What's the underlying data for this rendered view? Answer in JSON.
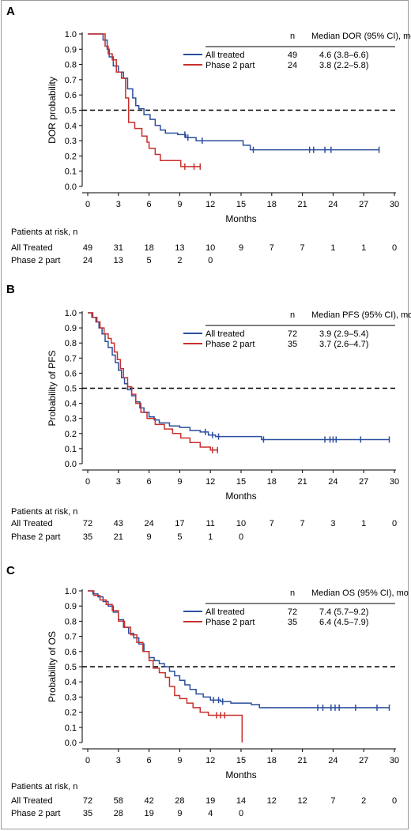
{
  "chart_data": [
    {
      "type": "line",
      "panel_label": "A",
      "ylabel": "DOR probability",
      "xlabel": "Months",
      "xticks": [
        0,
        3,
        6,
        9,
        12,
        15,
        18,
        21,
        24,
        27,
        30
      ],
      "yticks": [
        "0.0",
        "0.1",
        "0.2",
        "0.3",
        "0.4",
        "0.5",
        "0.6",
        "0.7",
        "0.8",
        "0.9",
        "1.0"
      ],
      "xlim": [
        0,
        30
      ],
      "ylim": [
        0,
        1
      ],
      "reference_line_y": 0.5,
      "legend_header": {
        "n": "n",
        "median": "Median DOR (95% CI), mo"
      },
      "series": [
        {
          "name": "All treated",
          "n": "49",
          "median": "4.6 (3.8–6.6)",
          "color": "#2b4f9e",
          "steps": [
            [
              0,
              1.0
            ],
            [
              1.5,
              0.96
            ],
            [
              1.9,
              0.9
            ],
            [
              2.1,
              0.85
            ],
            [
              2.5,
              0.79
            ],
            [
              3.0,
              0.75
            ],
            [
              3.5,
              0.71
            ],
            [
              3.9,
              0.64
            ],
            [
              4.4,
              0.58
            ],
            [
              4.7,
              0.53
            ],
            [
              5.0,
              0.51
            ],
            [
              5.5,
              0.47
            ],
            [
              6.1,
              0.44
            ],
            [
              6.6,
              0.4
            ],
            [
              7.1,
              0.37
            ],
            [
              7.6,
              0.35
            ],
            [
              8.8,
              0.34
            ],
            [
              9.6,
              0.32
            ],
            [
              10.6,
              0.3
            ],
            [
              15.2,
              0.27
            ],
            [
              15.9,
              0.24
            ],
            [
              28.5,
              0.24
            ]
          ],
          "censor": [
            9.5,
            9.8,
            11.2,
            16.2,
            21.7,
            22.1,
            23.2,
            23.8,
            28.5
          ]
        },
        {
          "name": "Phase 2 part",
          "n": "24",
          "median": "3.8 (2.2–5.8)",
          "color": "#c8302c",
          "steps": [
            [
              0,
              1.0
            ],
            [
              1.7,
              0.92
            ],
            [
              2.0,
              0.87
            ],
            [
              2.4,
              0.83
            ],
            [
              2.8,
              0.75
            ],
            [
              3.3,
              0.71
            ],
            [
              3.7,
              0.58
            ],
            [
              4.0,
              0.42
            ],
            [
              4.6,
              0.38
            ],
            [
              5.3,
              0.33
            ],
            [
              5.8,
              0.29
            ],
            [
              6.0,
              0.25
            ],
            [
              6.6,
              0.21
            ],
            [
              7.1,
              0.17
            ],
            [
              9.1,
              0.13
            ],
            [
              9.5,
              0.13
            ],
            [
              11.0,
              0.13
            ]
          ],
          "censor": [
            9.5,
            10.4,
            11.0
          ]
        }
      ],
      "risk_table": {
        "title": "Patients at risk, n",
        "rows": [
          {
            "label": "All Treated",
            "values": [
              "49",
              "31",
              "18",
              "13",
              "10",
              "9",
              "7",
              "7",
              "1",
              "1",
              "0"
            ]
          },
          {
            "label": "Phase 2 part",
            "values": [
              "24",
              "13",
              "5",
              "2",
              "0"
            ]
          }
        ]
      }
    },
    {
      "type": "line",
      "panel_label": "B",
      "ylabel": "Probability of PFS",
      "xlabel": "Months",
      "xticks": [
        0,
        3,
        6,
        9,
        12,
        15,
        18,
        21,
        24,
        27,
        30
      ],
      "yticks": [
        "0.0",
        "0.1",
        "0.2",
        "0.3",
        "0.4",
        "0.5",
        "0.6",
        "0.7",
        "0.8",
        "0.9",
        "1.0"
      ],
      "xlim": [
        0,
        30
      ],
      "ylim": [
        0,
        1
      ],
      "reference_line_y": 0.5,
      "legend_header": {
        "n": "n",
        "median": "Median PFS (95% CI), mo"
      },
      "series": [
        {
          "name": "All treated",
          "n": "72",
          "median": "3.9 (2.9–5.4)",
          "color": "#2b4f9e",
          "steps": [
            [
              0,
              1.0
            ],
            [
              0.4,
              0.97
            ],
            [
              0.8,
              0.94
            ],
            [
              1.1,
              0.9
            ],
            [
              1.4,
              0.86
            ],
            [
              1.7,
              0.81
            ],
            [
              2.0,
              0.77
            ],
            [
              2.4,
              0.72
            ],
            [
              2.7,
              0.67
            ],
            [
              3.0,
              0.62
            ],
            [
              3.3,
              0.57
            ],
            [
              3.6,
              0.53
            ],
            [
              3.9,
              0.49
            ],
            [
              4.3,
              0.45
            ],
            [
              4.7,
              0.41
            ],
            [
              5.1,
              0.37
            ],
            [
              5.5,
              0.34
            ],
            [
              6.0,
              0.31
            ],
            [
              6.5,
              0.29
            ],
            [
              7.0,
              0.27
            ],
            [
              8.0,
              0.25
            ],
            [
              9.0,
              0.24
            ],
            [
              10.0,
              0.22
            ],
            [
              11.0,
              0.21
            ],
            [
              11.8,
              0.19
            ],
            [
              12.5,
              0.18
            ],
            [
              17.0,
              0.16
            ],
            [
              29.5,
              0.16
            ]
          ],
          "censor": [
            11.5,
            12.2,
            12.8,
            17.2,
            23.2,
            23.7,
            24.0,
            24.3,
            26.7,
            29.5
          ]
        },
        {
          "name": "Phase 2 part",
          "n": "35",
          "median": "3.7 (2.6–4.7)",
          "color": "#c8302c",
          "steps": [
            [
              0,
              1.0
            ],
            [
              0.5,
              0.97
            ],
            [
              0.9,
              0.94
            ],
            [
              1.2,
              0.9
            ],
            [
              1.6,
              0.86
            ],
            [
              2.0,
              0.83
            ],
            [
              2.3,
              0.8
            ],
            [
              2.6,
              0.74
            ],
            [
              2.9,
              0.69
            ],
            [
              3.2,
              0.63
            ],
            [
              3.5,
              0.57
            ],
            [
              3.9,
              0.51
            ],
            [
              4.3,
              0.46
            ],
            [
              4.7,
              0.4
            ],
            [
              5.2,
              0.34
            ],
            [
              5.8,
              0.3
            ],
            [
              6.6,
              0.26
            ],
            [
              7.5,
              0.23
            ],
            [
              8.3,
              0.2
            ],
            [
              9.1,
              0.17
            ],
            [
              10.0,
              0.14
            ],
            [
              11.0,
              0.11
            ],
            [
              12.0,
              0.09
            ],
            [
              12.7,
              0.09
            ]
          ],
          "censor": [
            12.2,
            12.7
          ]
        }
      ],
      "risk_table": {
        "title": "Patients at risk, n",
        "rows": [
          {
            "label": "All Treated",
            "values": [
              "72",
              "43",
              "24",
              "17",
              "11",
              "10",
              "7",
              "7",
              "3",
              "1",
              "0"
            ]
          },
          {
            "label": "Phase 2 part",
            "values": [
              "35",
              "21",
              "9",
              "5",
              "1",
              "0"
            ]
          }
        ]
      }
    },
    {
      "type": "line",
      "panel_label": "C",
      "ylabel": "Probability of OS",
      "xlabel": "Months",
      "xticks": [
        0,
        3,
        6,
        9,
        12,
        15,
        18,
        21,
        24,
        27,
        30
      ],
      "yticks": [
        "0.0",
        "0.1",
        "0.2",
        "0.3",
        "0.4",
        "0.5",
        "0.6",
        "0.7",
        "0.8",
        "0.9",
        "1.0"
      ],
      "xlim": [
        0,
        30
      ],
      "ylim": [
        0,
        1
      ],
      "reference_line_y": 0.5,
      "legend_header": {
        "n": "n",
        "median": "Median OS (95% CI), mo"
      },
      "series": [
        {
          "name": "All treated",
          "n": "72",
          "median": "7.4 (5.7–9.2)",
          "color": "#2b4f9e",
          "steps": [
            [
              0,
              1.0
            ],
            [
              0.5,
              0.98
            ],
            [
              1.0,
              0.96
            ],
            [
              1.5,
              0.93
            ],
            [
              2.0,
              0.9
            ],
            [
              2.5,
              0.86
            ],
            [
              3.0,
              0.81
            ],
            [
              3.5,
              0.76
            ],
            [
              4.0,
              0.72
            ],
            [
              4.5,
              0.69
            ],
            [
              5.0,
              0.65
            ],
            [
              5.5,
              0.6
            ],
            [
              6.0,
              0.56
            ],
            [
              6.5,
              0.54
            ],
            [
              7.0,
              0.52
            ],
            [
              7.5,
              0.5
            ],
            [
              8.0,
              0.47
            ],
            [
              8.5,
              0.44
            ],
            [
              9.0,
              0.41
            ],
            [
              9.5,
              0.38
            ],
            [
              10.0,
              0.35
            ],
            [
              10.6,
              0.32
            ],
            [
              11.3,
              0.3
            ],
            [
              12.0,
              0.28
            ],
            [
              13.0,
              0.27
            ],
            [
              14.0,
              0.26
            ],
            [
              16.0,
              0.25
            ],
            [
              16.8,
              0.23
            ],
            [
              29.5,
              0.23
            ]
          ],
          "censor": [
            12.3,
            12.8,
            13.2,
            22.5,
            23.0,
            23.8,
            24.2,
            24.6,
            26.2,
            28.3,
            29.5
          ]
        },
        {
          "name": "Phase 2 part",
          "n": "35",
          "median": "6.4 (4.5–7.9)",
          "color": "#c8302c",
          "steps": [
            [
              0,
              1.0
            ],
            [
              0.6,
              0.97
            ],
            [
              1.2,
              0.94
            ],
            [
              1.8,
              0.91
            ],
            [
              2.4,
              0.87
            ],
            [
              3.0,
              0.8
            ],
            [
              3.6,
              0.76
            ],
            [
              4.2,
              0.71
            ],
            [
              4.8,
              0.66
            ],
            [
              5.4,
              0.6
            ],
            [
              6.0,
              0.54
            ],
            [
              6.4,
              0.49
            ],
            [
              7.0,
              0.46
            ],
            [
              7.6,
              0.43
            ],
            [
              8.0,
              0.37
            ],
            [
              8.5,
              0.31
            ],
            [
              9.0,
              0.29
            ],
            [
              9.7,
              0.26
            ],
            [
              10.3,
              0.23
            ],
            [
              11.0,
              0.2
            ],
            [
              11.8,
              0.18
            ],
            [
              15.1,
              0.18
            ],
            [
              15.1,
              0.0
            ]
          ],
          "censor": [
            12.6,
            13.0,
            13.4
          ]
        }
      ],
      "risk_table": {
        "title": "Patients at risk, n",
        "rows": [
          {
            "label": "All Treated",
            "values": [
              "72",
              "58",
              "42",
              "28",
              "19",
              "14",
              "12",
              "12",
              "7",
              "2",
              "0"
            ]
          },
          {
            "label": "Phase 2 part",
            "values": [
              "35",
              "28",
              "19",
              "9",
              "4",
              "0"
            ]
          }
        ]
      }
    }
  ]
}
